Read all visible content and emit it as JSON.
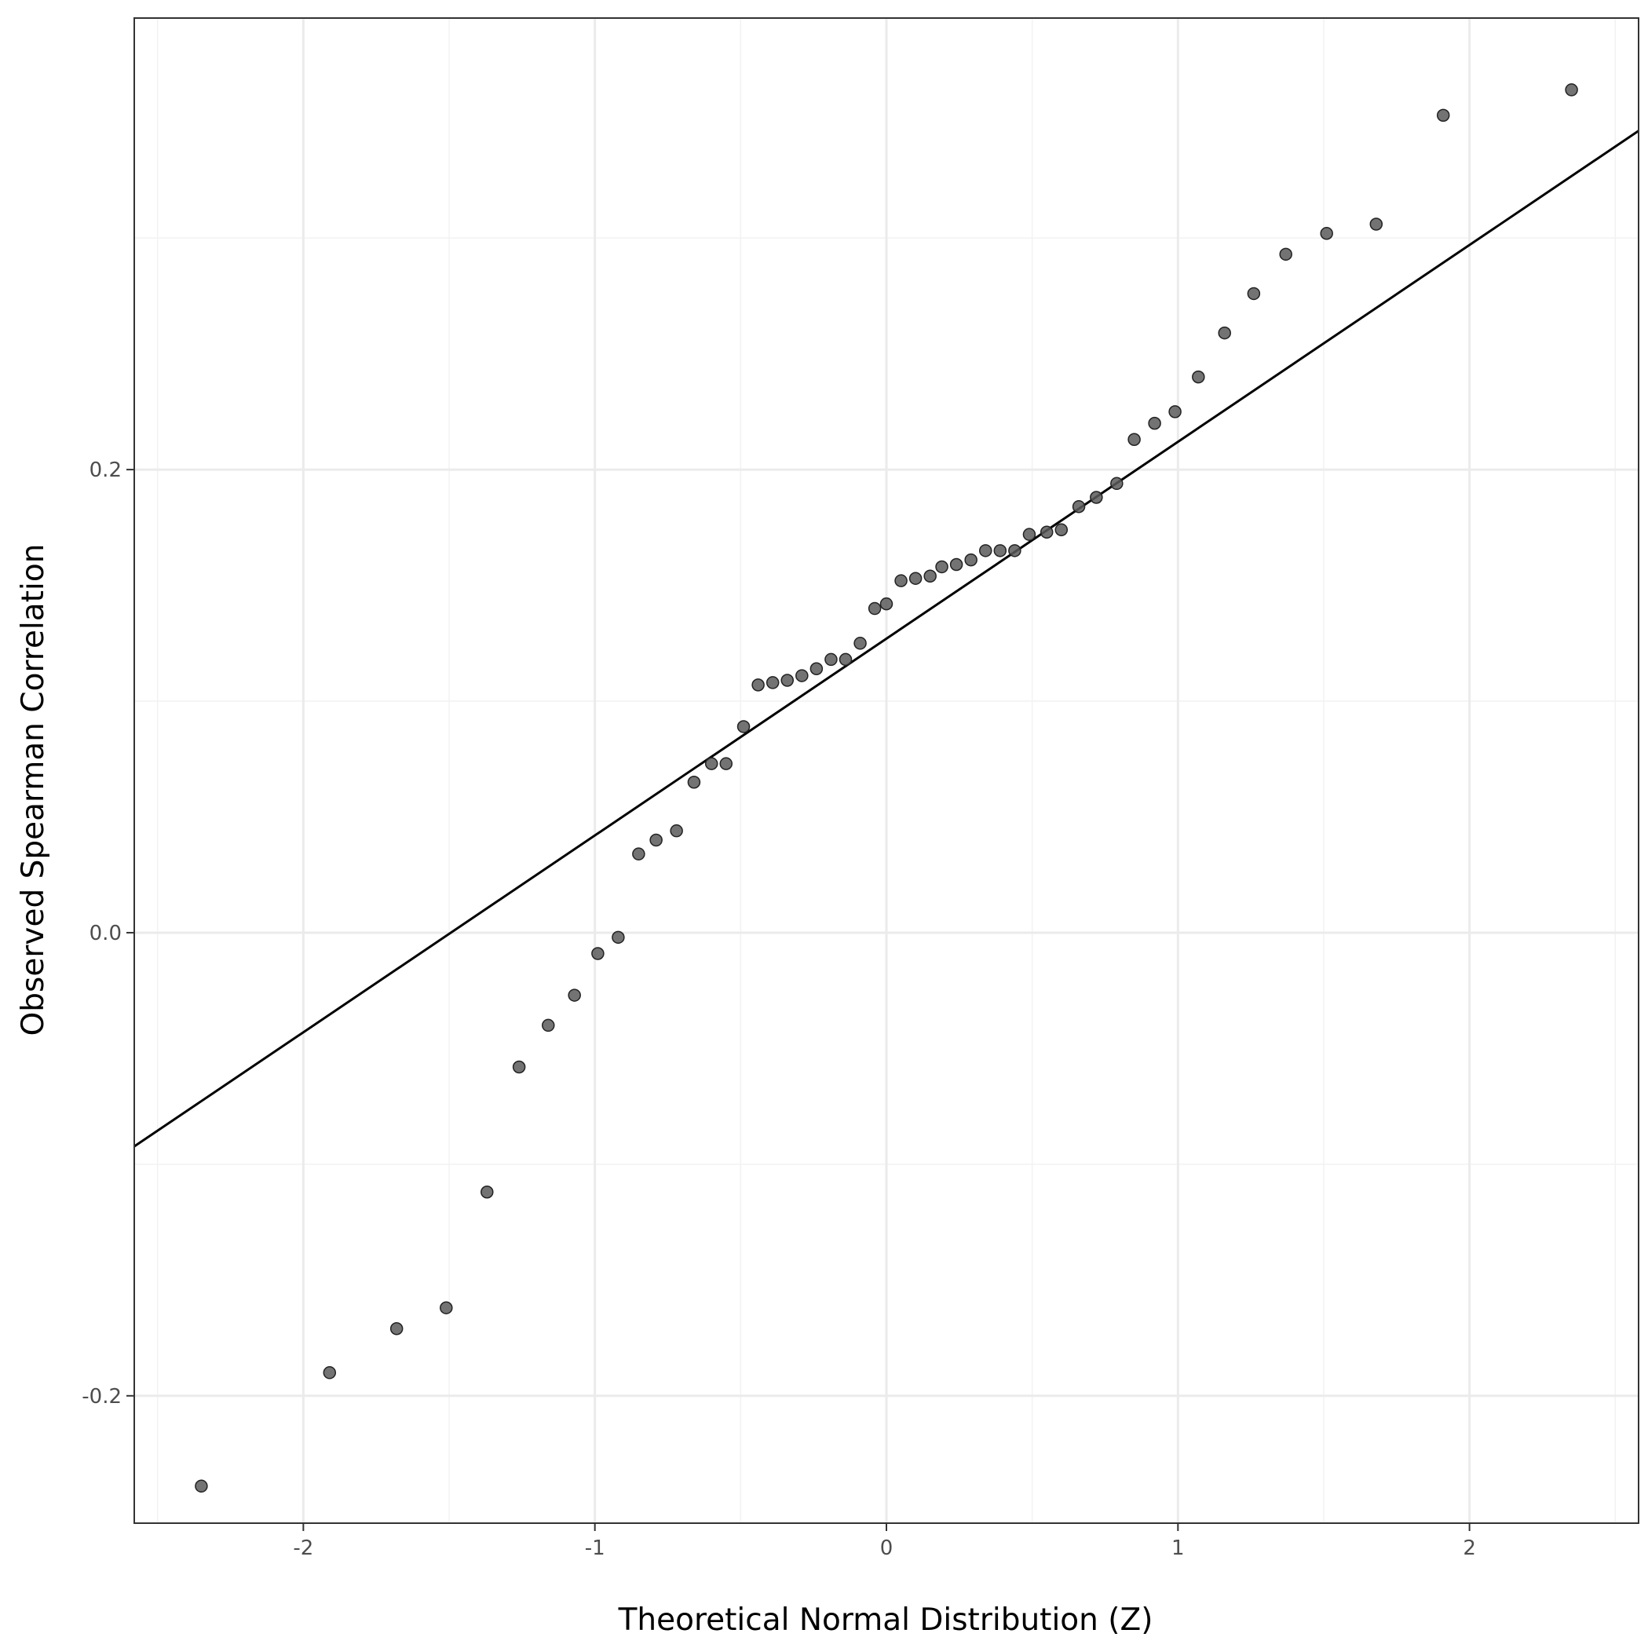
{
  "chart_data": {
    "type": "scatter",
    "title": "",
    "xlabel": "Theoretical Normal Distribution (Z)",
    "ylabel": "Observed Spearman Correlation",
    "xlim": [
      -2.58,
      2.58
    ],
    "ylim": [
      -0.255,
      0.395
    ],
    "x_ticks": [
      -2,
      -1,
      0,
      1,
      2
    ],
    "x_tick_labels": [
      "-2",
      "-1",
      "0",
      "1",
      "2"
    ],
    "y_ticks": [
      -0.2,
      0.0,
      0.2
    ],
    "y_tick_labels": [
      "-0.2",
      "0.0",
      "0.2"
    ],
    "grid": true,
    "reference_line": {
      "intercept": 0.127,
      "slope": 0.085
    },
    "point_color": "#5a5a5a",
    "points": {
      "x": [
        -2.35,
        -1.91,
        -1.68,
        -1.51,
        -1.37,
        -1.26,
        -1.16,
        -1.07,
        -0.99,
        -0.92,
        -0.85,
        -0.79,
        -0.72,
        -0.66,
        -0.6,
        -0.55,
        -0.49,
        -0.44,
        -0.39,
        -0.34,
        -0.29,
        -0.24,
        -0.19,
        -0.14,
        -0.09,
        -0.04,
        0.0,
        0.05,
        0.1,
        0.15,
        0.19,
        0.24,
        0.29,
        0.34,
        0.39,
        0.44,
        0.49,
        0.55,
        0.6,
        0.66,
        0.72,
        0.79,
        0.85,
        0.92,
        0.99,
        1.07,
        1.16,
        1.26,
        1.37,
        1.51,
        1.68,
        1.91,
        2.35
      ],
      "y": [
        -0.239,
        -0.19,
        -0.171,
        -0.162,
        -0.112,
        -0.058,
        -0.04,
        -0.027,
        -0.009,
        -0.002,
        0.034,
        0.04,
        0.044,
        0.065,
        0.073,
        0.073,
        0.089,
        0.107,
        0.108,
        0.109,
        0.111,
        0.114,
        0.118,
        0.118,
        0.125,
        0.14,
        0.142,
        0.152,
        0.153,
        0.154,
        0.158,
        0.159,
        0.161,
        0.165,
        0.165,
        0.165,
        0.172,
        0.173,
        0.174,
        0.184,
        0.188,
        0.194,
        0.213,
        0.22,
        0.225,
        0.24,
        0.259,
        0.276,
        0.293,
        0.302,
        0.306,
        0.353,
        0.364
      ]
    }
  }
}
